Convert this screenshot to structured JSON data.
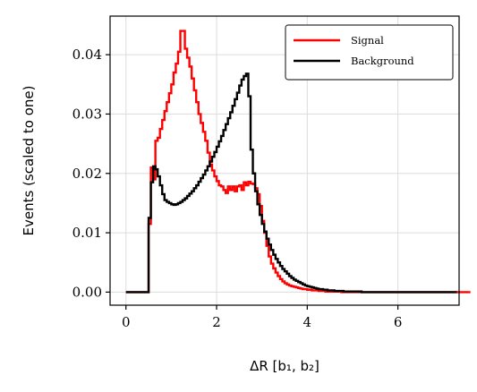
{
  "chart_data": {
    "type": "line",
    "drawstyle": "steps",
    "xlabel": "ΔR [b₁, b₂]",
    "ylabel": "Events (scaled to one)",
    "xlim": [
      -0.35,
      7.35
    ],
    "ylim": [
      -0.0022,
      0.0465
    ],
    "xticks": [
      0,
      2,
      4,
      6
    ],
    "yticks": [
      0.0,
      0.01,
      0.02,
      0.03,
      0.04
    ],
    "xtick_labels": [
      "0",
      "2",
      "4",
      "6"
    ],
    "ytick_labels": [
      "0.00",
      "0.01",
      "0.02",
      "0.03",
      "0.04"
    ],
    "grid": true,
    "legend_position": "top-right",
    "bin_width": 0.05,
    "x_start": 0.0,
    "series": [
      {
        "name": "Signal",
        "color": "#ff0000",
        "values": [
          0,
          0,
          0,
          0,
          0,
          0,
          0,
          0,
          0,
          0,
          0.0115,
          0.021,
          0.019,
          0.0255,
          0.026,
          0.0275,
          0.029,
          0.0305,
          0.032,
          0.0335,
          0.035,
          0.037,
          0.0385,
          0.0405,
          0.044,
          0.044,
          0.041,
          0.0395,
          0.038,
          0.036,
          0.034,
          0.032,
          0.03,
          0.0285,
          0.027,
          0.0255,
          0.0235,
          0.0215,
          0.0205,
          0.0195,
          0.0187,
          0.018,
          0.0178,
          0.0172,
          0.0167,
          0.0178,
          0.0172,
          0.0178,
          0.017,
          0.0178,
          0.018,
          0.0172,
          0.0185,
          0.018,
          0.0186,
          0.0183,
          0.0182,
          0.0175,
          0.0165,
          0.0145,
          0.012,
          0.01,
          0.0078,
          0.006,
          0.0048,
          0.004,
          0.0033,
          0.0027,
          0.0022,
          0.0018,
          0.0015,
          0.0013,
          0.0011,
          0.001,
          0.0009,
          0.0008,
          0.0007,
          0.0006,
          0.0005,
          0.0005,
          0.0004,
          0.0004,
          0.0003,
          0.0003,
          0.0003,
          0.0002,
          0.0002,
          0.0002,
          0.0001,
          0.0001,
          0.0001,
          0.0001,
          0.0001,
          0.0001,
          0.0001,
          0,
          0,
          0,
          0,
          0,
          0,
          0,
          0,
          0,
          0,
          0,
          0,
          0,
          0,
          0,
          0,
          0,
          0,
          0,
          0,
          0,
          0,
          0,
          0,
          0,
          0,
          0,
          0,
          0,
          0,
          0,
          0,
          0,
          0,
          0,
          0,
          0,
          0,
          0,
          0,
          0,
          0,
          0,
          0,
          0,
          0,
          0,
          0,
          0,
          0,
          0,
          0,
          0,
          0,
          0,
          0,
          0
        ]
      },
      {
        "name": "Background",
        "color": "#000000",
        "values": [
          0,
          0,
          0,
          0,
          0,
          0,
          0,
          0,
          0,
          0,
          0.0125,
          0.0185,
          0.0212,
          0.0207,
          0.0195,
          0.018,
          0.0165,
          0.0155,
          0.0152,
          0.015,
          0.0148,
          0.0147,
          0.0148,
          0.015,
          0.0152,
          0.0155,
          0.0158,
          0.0162,
          0.0166,
          0.017,
          0.0175,
          0.018,
          0.0186,
          0.0192,
          0.0198,
          0.0205,
          0.0212,
          0.022,
          0.0228,
          0.0236,
          0.0245,
          0.0254,
          0.0263,
          0.0273,
          0.0283,
          0.0293,
          0.0303,
          0.0314,
          0.0325,
          0.0336,
          0.0348,
          0.0358,
          0.0364,
          0.0368,
          0.033,
          0.024,
          0.02,
          0.017,
          0.0148,
          0.013,
          0.0115,
          0.0102,
          0.009,
          0.008,
          0.0071,
          0.0063,
          0.0056,
          0.005,
          0.0044,
          0.0039,
          0.0035,
          0.0031,
          0.0027,
          0.0024,
          0.0021,
          0.0019,
          0.0017,
          0.0015,
          0.0013,
          0.0011,
          0.001,
          0.0009,
          0.0008,
          0.0007,
          0.0006,
          0.0005,
          0.0005,
          0.0004,
          0.0004,
          0.0003,
          0.0003,
          0.0003,
          0.0002,
          0.0002,
          0.0002,
          0.0002,
          0.0001,
          0.0001,
          0.0001,
          0.0001,
          0.0001,
          0.0001,
          0.0001,
          0.0001,
          0,
          0,
          0,
          0,
          0,
          0,
          0,
          0,
          0,
          0,
          0,
          0,
          0,
          0,
          0,
          0,
          0,
          0,
          0,
          0,
          0,
          0,
          0,
          0,
          0,
          0,
          0,
          0,
          0,
          0,
          0,
          0,
          0,
          0,
          0,
          0,
          0,
          0,
          0,
          0,
          0,
          0
        ]
      }
    ]
  },
  "legend": {
    "items": [
      {
        "label": "Signal",
        "color": "#ff0000"
      },
      {
        "label": "Background",
        "color": "#000000"
      }
    ]
  }
}
